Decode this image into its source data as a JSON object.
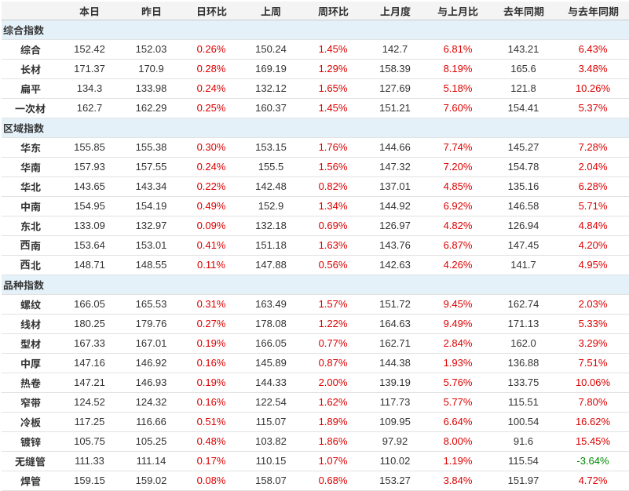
{
  "page": {
    "background": "#ffffff",
    "description": "Steel price index data table"
  },
  "chart_data": {
    "type": "table",
    "columns": [
      "",
      "本日",
      "昨日",
      "日环比",
      "上周",
      "周环比",
      "上月度",
      "与上月比",
      "去年同期",
      "与去年同期"
    ],
    "sections": [
      {
        "title": "综合指数",
        "rows": [
          {
            "label": "综合",
            "values": [
              "152.42",
              "152.03",
              "0.26%",
              "150.24",
              "1.45%",
              "142.7",
              "6.81%",
              "143.21",
              "6.43%"
            ]
          },
          {
            "label": "长材",
            "values": [
              "171.37",
              "170.9",
              "0.28%",
              "169.19",
              "1.29%",
              "158.39",
              "8.19%",
              "165.6",
              "3.48%"
            ]
          },
          {
            "label": "扁平",
            "values": [
              "134.3",
              "133.98",
              "0.24%",
              "132.12",
              "1.65%",
              "127.69",
              "5.18%",
              "121.8",
              "10.26%"
            ]
          },
          {
            "label": "一次材",
            "values": [
              "162.7",
              "162.29",
              "0.25%",
              "160.37",
              "1.45%",
              "151.21",
              "7.60%",
              "154.41",
              "5.37%"
            ]
          }
        ]
      },
      {
        "title": "区域指数",
        "rows": [
          {
            "label": "华东",
            "values": [
              "155.85",
              "155.38",
              "0.30%",
              "153.15",
              "1.76%",
              "144.66",
              "7.74%",
              "145.27",
              "7.28%"
            ]
          },
          {
            "label": "华南",
            "values": [
              "157.93",
              "157.55",
              "0.24%",
              "155.5",
              "1.56%",
              "147.32",
              "7.20%",
              "154.78",
              "2.04%"
            ]
          },
          {
            "label": "华北",
            "values": [
              "143.65",
              "143.34",
              "0.22%",
              "142.48",
              "0.82%",
              "137.01",
              "4.85%",
              "135.16",
              "6.28%"
            ]
          },
          {
            "label": "中南",
            "values": [
              "154.95",
              "154.19",
              "0.49%",
              "152.9",
              "1.34%",
              "144.92",
              "6.92%",
              "146.58",
              "5.71%"
            ]
          },
          {
            "label": "东北",
            "values": [
              "133.09",
              "132.97",
              "0.09%",
              "132.18",
              "0.69%",
              "126.97",
              "4.82%",
              "126.94",
              "4.84%"
            ]
          },
          {
            "label": "西南",
            "values": [
              "153.64",
              "153.01",
              "0.41%",
              "151.18",
              "1.63%",
              "143.76",
              "6.87%",
              "147.45",
              "4.20%"
            ]
          },
          {
            "label": "西北",
            "values": [
              "148.71",
              "148.55",
              "0.11%",
              "147.88",
              "0.56%",
              "142.63",
              "4.26%",
              "141.7",
              "4.95%"
            ]
          }
        ]
      },
      {
        "title": "品种指数",
        "rows": [
          {
            "label": "螺纹",
            "values": [
              "166.05",
              "165.53",
              "0.31%",
              "163.49",
              "1.57%",
              "151.72",
              "9.45%",
              "162.74",
              "2.03%"
            ]
          },
          {
            "label": "线材",
            "values": [
              "180.25",
              "179.76",
              "0.27%",
              "178.08",
              "1.22%",
              "164.63",
              "9.49%",
              "171.13",
              "5.33%"
            ]
          },
          {
            "label": "型材",
            "values": [
              "167.33",
              "167.01",
              "0.19%",
              "166.05",
              "0.77%",
              "162.71",
              "2.84%",
              "162.0",
              "3.29%"
            ]
          },
          {
            "label": "中厚",
            "values": [
              "147.16",
              "146.92",
              "0.16%",
              "145.89",
              "0.87%",
              "144.38",
              "1.93%",
              "136.88",
              "7.51%"
            ]
          },
          {
            "label": "热卷",
            "values": [
              "147.21",
              "146.93",
              "0.19%",
              "144.33",
              "2.00%",
              "139.19",
              "5.76%",
              "133.75",
              "10.06%"
            ]
          },
          {
            "label": "窄带",
            "values": [
              "124.52",
              "124.32",
              "0.16%",
              "122.54",
              "1.62%",
              "117.73",
              "5.77%",
              "115.51",
              "7.80%"
            ]
          },
          {
            "label": "冷板",
            "values": [
              "117.25",
              "116.66",
              "0.51%",
              "115.07",
              "1.89%",
              "109.95",
              "6.64%",
              "100.54",
              "16.62%"
            ]
          },
          {
            "label": "镀锌",
            "values": [
              "105.75",
              "105.25",
              "0.48%",
              "103.82",
              "1.86%",
              "97.92",
              "8.00%",
              "91.6",
              "15.45%"
            ]
          },
          {
            "label": "无缝管",
            "values": [
              "111.33",
              "111.14",
              "0.17%",
              "110.15",
              "1.07%",
              "110.02",
              "1.19%",
              "115.54",
              "-3.64%"
            ]
          },
          {
            "label": "焊管",
            "values": [
              "159.15",
              "159.02",
              "0.08%",
              "158.07",
              "0.68%",
              "153.27",
              "3.84%",
              "151.97",
              "4.72%"
            ]
          }
        ]
      }
    ],
    "layout": {
      "legend": "none",
      "grid": "horizontal-row-borders"
    }
  },
  "colors": {
    "up_percent": "#dd0000",
    "down_percent": "#008800",
    "text": "#333333",
    "header_background": "#f4f4f4",
    "section_background": "#e4f1f9",
    "row_border": "#e2e2e2",
    "header_border": "#cbcbcb"
  }
}
